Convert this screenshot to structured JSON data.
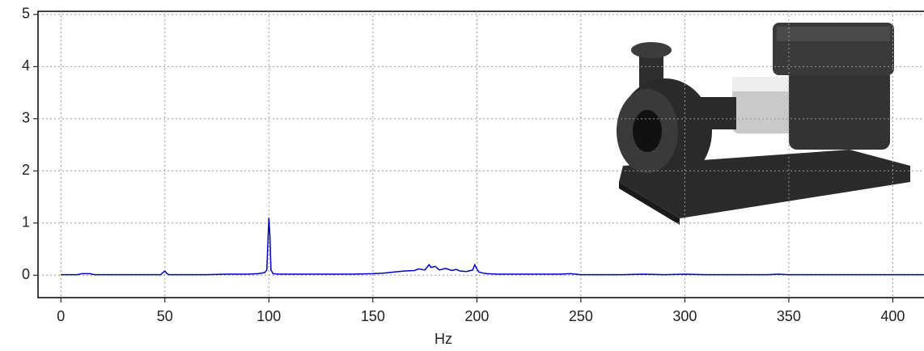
{
  "chart_data": {
    "type": "line",
    "x_label": "Hz",
    "x": [
      0,
      8,
      10,
      12,
      14,
      16,
      20,
      30,
      40,
      48,
      49,
      50,
      51,
      52,
      60,
      70,
      80,
      90,
      95,
      98,
      99,
      100,
      100.5,
      101,
      102,
      105,
      110,
      120,
      130,
      140,
      150,
      155,
      160,
      165,
      170,
      172,
      175,
      177,
      178,
      180,
      182,
      185,
      188,
      190,
      192,
      195,
      198,
      199,
      200,
      201,
      203,
      205,
      210,
      220,
      230,
      240,
      245,
      250,
      260,
      270,
      280,
      290,
      300,
      310,
      320,
      340,
      345,
      350,
      360,
      380,
      400,
      415
    ],
    "values": [
      0.01,
      0.01,
      0.03,
      0.03,
      0.03,
      0.01,
      0.01,
      0.01,
      0.01,
      0.01,
      0.05,
      0.08,
      0.03,
      0.01,
      0.01,
      0.01,
      0.02,
      0.02,
      0.03,
      0.05,
      0.1,
      1.1,
      0.75,
      0.1,
      0.03,
      0.02,
      0.02,
      0.02,
      0.02,
      0.02,
      0.03,
      0.04,
      0.06,
      0.08,
      0.09,
      0.12,
      0.1,
      0.2,
      0.15,
      0.17,
      0.1,
      0.13,
      0.09,
      0.11,
      0.08,
      0.07,
      0.1,
      0.2,
      0.12,
      0.06,
      0.04,
      0.03,
      0.02,
      0.02,
      0.02,
      0.02,
      0.03,
      0.01,
      0.01,
      0.01,
      0.02,
      0.01,
      0.02,
      0.01,
      0.01,
      0.01,
      0.02,
      0.01,
      0.01,
      0.01,
      0.01,
      0.01
    ],
    "color": "#0000cc",
    "xlim": [
      -11,
      415
    ],
    "ylim": [
      -0.43,
      5.06
    ],
    "xticks": [
      0,
      50,
      100,
      150,
      200,
      250,
      300,
      350,
      400
    ],
    "yticks": [
      0,
      1,
      2,
      3,
      4,
      5
    ],
    "grid": true
  }
}
